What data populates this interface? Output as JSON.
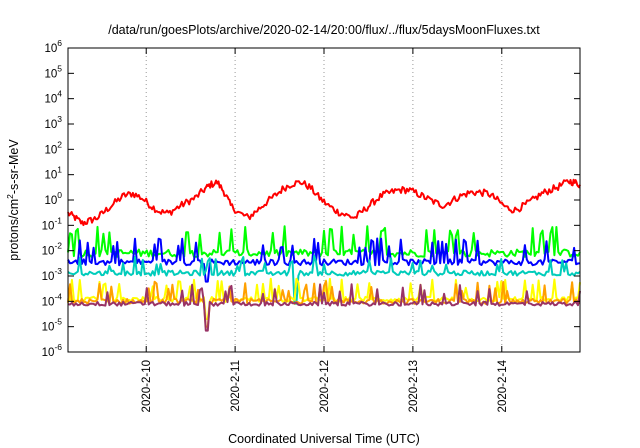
{
  "chart_data": {
    "type": "line",
    "title": "/data/run/goesPlots/archive/2020-02-14/20:00/flux/../flux/5daysMoonFluxes.txt",
    "xlabel": "Coordinated Universal Time (UTC)",
    "ylabel": "protons/cm2-s-sr-MeV",
    "ylabel_base": "protons/cm",
    "ylabel_sup": "2",
    "ylabel_rest": "-s-sr-MeV",
    "y_scale": "log",
    "ylim": [
      1e-06,
      1000000.0
    ],
    "y_tick_exponents": [
      -6,
      -5,
      -4,
      -3,
      -2,
      -1,
      0,
      1,
      2,
      3,
      4,
      5,
      6
    ],
    "xlim_days": [
      9.12,
      14.88
    ],
    "x_ticks": [
      {
        "day": 10,
        "label": "2020-2-10"
      },
      {
        "day": 11,
        "label": "2020-2-11"
      },
      {
        "day": 12,
        "label": "2020-2-12"
      },
      {
        "day": 13,
        "label": "2020-2-13"
      },
      {
        "day": 14,
        "label": "2020-2-14"
      }
    ],
    "grid": true,
    "legend": "none",
    "series": [
      {
        "color": "#ff0000",
        "kind": "smooth",
        "points": [
          [
            9.12,
            0.3
          ],
          [
            9.2,
            0.2
          ],
          [
            9.28,
            0.12
          ],
          [
            9.36,
            0.15
          ],
          [
            9.45,
            0.2
          ],
          [
            9.55,
            0.4
          ],
          [
            9.65,
            0.8
          ],
          [
            9.75,
            1.5
          ],
          [
            9.85,
            1.8
          ],
          [
            9.95,
            1.2
          ],
          [
            10.05,
            0.6
          ],
          [
            10.15,
            0.35
          ],
          [
            10.25,
            0.3
          ],
          [
            10.35,
            0.5
          ],
          [
            10.45,
            0.8
          ],
          [
            10.55,
            1.2
          ],
          [
            10.65,
            2.5
          ],
          [
            10.72,
            4.0
          ],
          [
            10.8,
            5.0
          ],
          [
            10.88,
            2.0
          ],
          [
            10.95,
            0.6
          ],
          [
            11.05,
            0.3
          ],
          [
            11.15,
            0.2
          ],
          [
            11.25,
            0.4
          ],
          [
            11.35,
            0.8
          ],
          [
            11.45,
            1.5
          ],
          [
            11.55,
            3.0
          ],
          [
            11.65,
            4.5
          ],
          [
            11.75,
            5.0
          ],
          [
            11.85,
            3.0
          ],
          [
            11.95,
            1.2
          ],
          [
            12.05,
            0.6
          ],
          [
            12.15,
            0.35
          ],
          [
            12.25,
            0.25
          ],
          [
            12.35,
            0.2
          ],
          [
            12.45,
            0.4
          ],
          [
            12.55,
            0.8
          ],
          [
            12.65,
            1.5
          ],
          [
            12.75,
            2.0
          ],
          [
            12.85,
            2.5
          ],
          [
            12.95,
            2.5
          ],
          [
            13.05,
            1.8
          ],
          [
            13.15,
            1.2
          ],
          [
            13.25,
            0.8
          ],
          [
            13.35,
            0.6
          ],
          [
            13.45,
            1.0
          ],
          [
            13.55,
            1.5
          ],
          [
            13.65,
            2.0
          ],
          [
            13.75,
            2.0
          ],
          [
            13.85,
            1.8
          ],
          [
            13.95,
            1.0
          ],
          [
            14.05,
            0.5
          ],
          [
            14.15,
            0.4
          ],
          [
            14.25,
            0.6
          ],
          [
            14.35,
            1.0
          ],
          [
            14.45,
            1.8
          ],
          [
            14.55,
            2.5
          ],
          [
            14.65,
            3.5
          ],
          [
            14.75,
            5.5
          ],
          [
            14.82,
            5.0
          ],
          [
            14.88,
            4.0
          ]
        ]
      },
      {
        "color": "#00ff00",
        "kind": "spiky",
        "base": 0.008,
        "peak": 0.06,
        "amp": 0.15
      },
      {
        "color": "#0000ff",
        "kind": "spiky",
        "base": 0.0035,
        "peak": 0.02,
        "amp": 0.12,
        "dip": [
          10.68,
          0.0006
        ]
      },
      {
        "color": "#00ccbb",
        "kind": "spiky",
        "base": 0.0013,
        "peak": 0.004,
        "amp": 0.1,
        "dip": [
          11.68,
          8e-05
        ]
      },
      {
        "color": "#ffff00",
        "kind": "spiky",
        "base": 0.00012,
        "peak": 0.0005,
        "amp": 0.1,
        "dip": [
          10.68,
          2e-05
        ]
      },
      {
        "color": "#ffa000",
        "kind": "spiky",
        "base": 0.0001,
        "peak": 0.0004,
        "amp": 0.1,
        "dip": [
          10.68,
          1e-05
        ]
      },
      {
        "color": "#993366",
        "kind": "spiky",
        "base": 8e-05,
        "peak": 0.0003,
        "amp": 0.08,
        "dip": [
          10.68,
          7e-06
        ]
      }
    ]
  }
}
